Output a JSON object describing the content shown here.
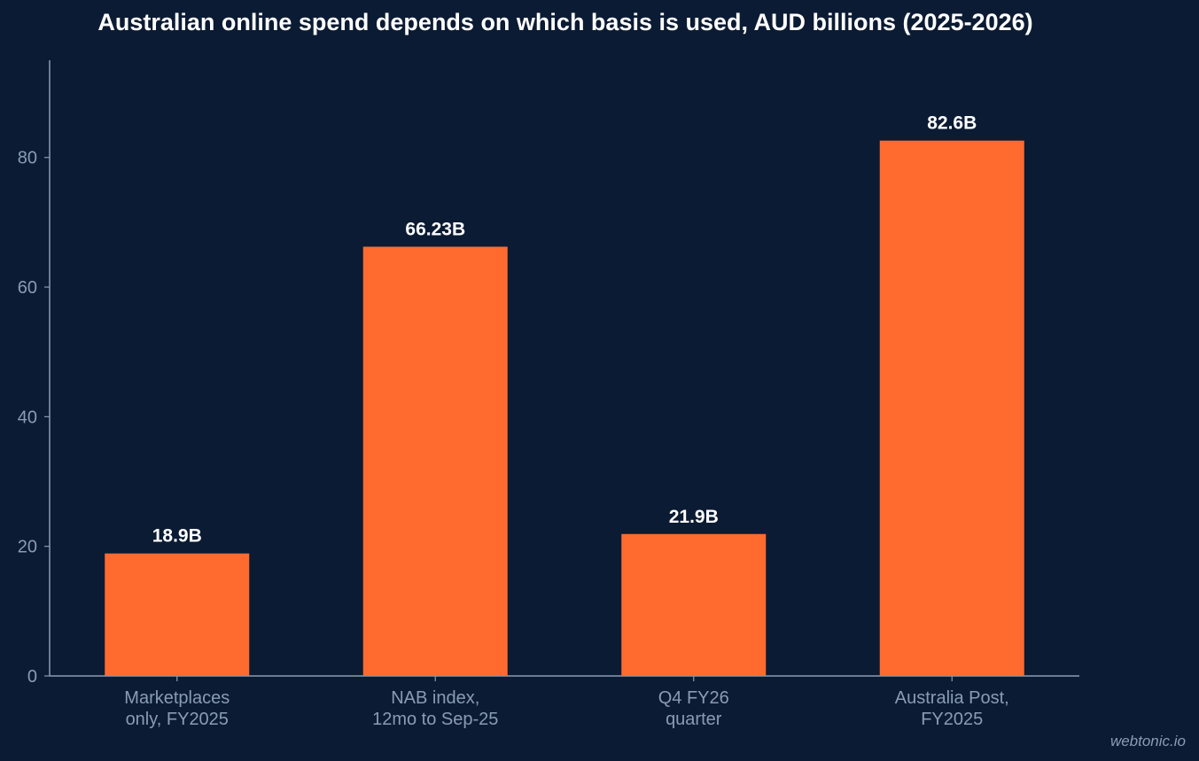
{
  "chart_data": {
    "type": "bar",
    "title": "Australian online spend depends on which basis is used, AUD billions (2025-2026)",
    "categories": [
      [
        "Marketplaces",
        "only, FY2025"
      ],
      [
        "NAB index,",
        "12mo to Sep-25"
      ],
      [
        "Q4 FY26",
        "quarter"
      ],
      [
        "Australia Post,",
        "FY2025"
      ]
    ],
    "values": [
      18.9,
      66.23,
      21.9,
      82.6
    ],
    "data_labels": [
      "18.9B",
      "66.23B",
      "21.9B",
      "82.6B"
    ],
    "ylim": [
      0,
      95
    ],
    "yticks": [
      0,
      20,
      40,
      60,
      80
    ],
    "xlabel": "",
    "ylabel": "",
    "grid": false,
    "colors": {
      "background": "#0b1b33",
      "bar": "#ff6b2f",
      "axis": "#8a9bb5",
      "label": "#ffffff"
    }
  },
  "watermark": "webtonic.io"
}
